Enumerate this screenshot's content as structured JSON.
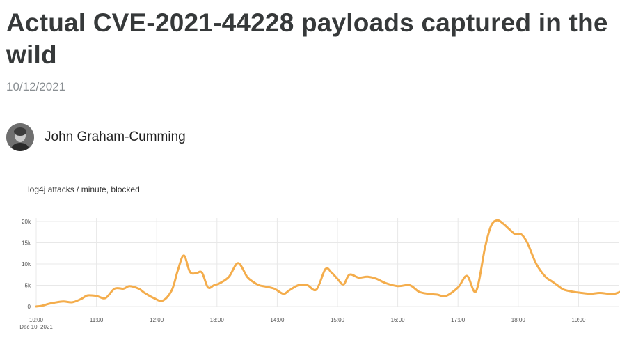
{
  "article": {
    "title": "Actual CVE-2021-44228 payloads captured in the wild",
    "date": "10/12/2021",
    "author": {
      "name": "John Graham-Cumming",
      "avatar_icon": "author-avatar"
    }
  },
  "colors": {
    "line": "#f4ad4c",
    "grid": "#e8e8e8",
    "title": "#36393a",
    "date": "#8a8f93"
  },
  "chart_data": {
    "type": "line",
    "title": "log4j attacks / minute, blocked",
    "xlabel": "",
    "ylabel": "",
    "x_ticks": [
      "10:00",
      "11:00",
      "12:00",
      "13:00",
      "14:00",
      "15:00",
      "16:00",
      "17:00",
      "18:00",
      "19:00"
    ],
    "x_sublabel": "Dec 10, 2021",
    "y_ticks": [
      "0",
      "5k",
      "10k",
      "15k",
      "20k"
    ],
    "ylim": [
      0,
      20000
    ],
    "xlim_hours": [
      10.0,
      19.7
    ],
    "grid": true,
    "series": [
      {
        "x": [
          10.0,
          10.1,
          10.2,
          10.3,
          10.45,
          10.6,
          10.75,
          10.85,
          11.0,
          11.15,
          11.3,
          11.45,
          11.55,
          11.7,
          11.8,
          11.95,
          12.1,
          12.25,
          12.35,
          12.45,
          12.55,
          12.65,
          12.75,
          12.85,
          12.95,
          13.05,
          13.2,
          13.35,
          13.5,
          13.6,
          13.7,
          13.8,
          13.95,
          14.1,
          14.2,
          14.35,
          14.5,
          14.65,
          14.8,
          14.9,
          15.0,
          15.1,
          15.2,
          15.35,
          15.5,
          15.65,
          15.8,
          16.0,
          16.2,
          16.35,
          16.5,
          16.65,
          16.8,
          17.0,
          17.15,
          17.3,
          17.45,
          17.55,
          17.65,
          17.75,
          17.85,
          17.95,
          18.05,
          18.15,
          18.3,
          18.45,
          18.55,
          18.65,
          18.75,
          18.9,
          19.05,
          19.2,
          19.35,
          19.5,
          19.6,
          19.7
        ],
        "y": [
          0,
          200,
          600,
          900,
          1200,
          1000,
          1800,
          2600,
          2500,
          2000,
          4200,
          4200,
          4800,
          4200,
          3200,
          2000,
          1400,
          3800,
          8500,
          12000,
          8200,
          7800,
          8000,
          4500,
          5000,
          5500,
          7000,
          10200,
          7000,
          5800,
          5000,
          4700,
          4200,
          3000,
          3800,
          5000,
          5000,
          4000,
          8800,
          8000,
          6500,
          5200,
          7500,
          6800,
          7000,
          6500,
          5500,
          4800,
          5000,
          3500,
          3000,
          2800,
          2500,
          4500,
          7200,
          3600,
          14000,
          19000,
          20300,
          19500,
          18200,
          17000,
          17000,
          15000,
          10000,
          7000,
          6000,
          5000,
          4000,
          3500,
          3200,
          3000,
          3200,
          3000,
          3000,
          3500
        ]
      }
    ]
  }
}
